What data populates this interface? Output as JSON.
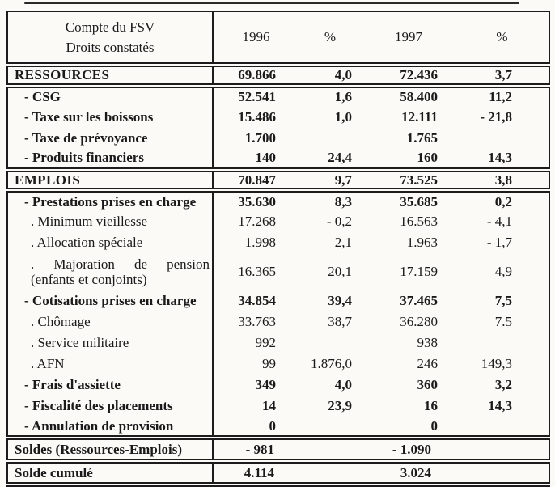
{
  "table": {
    "header": {
      "title_line1": "Compte du FSV",
      "title_line2": "Droits constatés",
      "columns": [
        "1996",
        "%",
        "1997",
        "%"
      ]
    },
    "rows": [
      {
        "style": "section",
        "bold": true,
        "label": "RESSOURCES",
        "values": [
          "69.866",
          "4,0",
          "72.436",
          "3,7"
        ]
      },
      {
        "style": "dash",
        "bold": true,
        "rule_above": true,
        "label": "- CSG",
        "values": [
          "52.541",
          "1,6",
          "58.400",
          "11,2"
        ]
      },
      {
        "style": "dash",
        "bold": true,
        "label": "- Taxe sur les boissons",
        "values": [
          "15.486",
          "1,0",
          "12.111",
          "- 21,8"
        ]
      },
      {
        "style": "dash",
        "bold": true,
        "label": "- Taxe de prévoyance",
        "values": [
          "1.700",
          "",
          "1.765",
          ""
        ]
      },
      {
        "style": "dash",
        "bold": true,
        "label": "- Produits financiers",
        "values": [
          "140",
          "24,4",
          "160",
          "14,3"
        ]
      },
      {
        "style": "section",
        "bold": true,
        "rule_above": true,
        "label": "EMPLOIS",
        "values": [
          "70.847",
          "9,7",
          "73.525",
          "3,8"
        ]
      },
      {
        "style": "dash",
        "bold": true,
        "rule_above": true,
        "label": "- Prestations prises en charge",
        "values": [
          "35.630",
          "8,3",
          "35.685",
          "0,2"
        ]
      },
      {
        "style": "dot",
        "bold": false,
        "label": ". Minimum vieillesse",
        "values": [
          "17.268",
          "- 0,2",
          "16.563",
          "- 4,1"
        ]
      },
      {
        "style": "dot",
        "bold": false,
        "label": ". Allocation spéciale",
        "values": [
          "1.998",
          "2,1",
          "1.963",
          "- 1,7"
        ]
      },
      {
        "style": "dot",
        "bold": false,
        "justify": true,
        "label": ". Majoration de pension",
        "label2": "(enfants et conjoints)",
        "values": [
          "16.365",
          "20,1",
          "17.159",
          "4,9"
        ]
      },
      {
        "style": "dash",
        "bold": true,
        "label": "- Cotisations prises en charge",
        "values": [
          "34.854",
          "39,4",
          "37.465",
          "7,5"
        ]
      },
      {
        "style": "dot",
        "bold": false,
        "label": ". Chômage",
        "values": [
          "33.763",
          "38,7",
          "36.280",
          "7.5"
        ]
      },
      {
        "style": "dot",
        "bold": false,
        "label": ". Service militaire",
        "values": [
          "992",
          "",
          "938",
          ""
        ]
      },
      {
        "style": "dot",
        "bold": false,
        "label": ". AFN",
        "values": [
          "99",
          "1.876,0",
          "246",
          "149,3"
        ]
      },
      {
        "style": "dash",
        "bold": true,
        "label": "- Frais d'assiette",
        "values": [
          "349",
          "4,0",
          "360",
          "3,2"
        ]
      },
      {
        "style": "dash",
        "bold": true,
        "label": "- Fiscalité des placements",
        "values": [
          "14",
          "23,9",
          "16",
          "14,3"
        ]
      },
      {
        "style": "dash",
        "bold": true,
        "label": "- Annulation de provision",
        "values": [
          "0",
          "",
          "0",
          ""
        ]
      },
      {
        "style": "total",
        "bold": true,
        "rule_above": true,
        "merged": true,
        "label": "Soldes (Ressources-Emplois)",
        "values": [
          "- 981",
          "- 1.090"
        ]
      },
      {
        "style": "total",
        "bold": true,
        "rule_above": true,
        "merged": true,
        "label": "Solde cumulé",
        "values": [
          "4.114",
          "3.024"
        ]
      }
    ]
  }
}
